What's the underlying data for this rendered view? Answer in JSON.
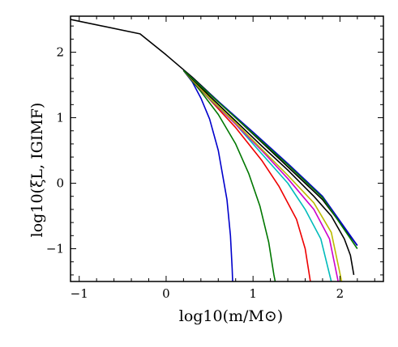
{
  "chart_data": {
    "type": "line",
    "title": "",
    "xlabel": "log10(m/M⊙)",
    "ylabel": "log10(ξL, IGIMF)",
    "xlim": [
      -1.1,
      2.5
    ],
    "ylim": [
      -1.5,
      2.55
    ],
    "xticks": [
      -1,
      0,
      1,
      2
    ],
    "yticks": [
      -1,
      0,
      1,
      2
    ],
    "grid": false,
    "legend": "none",
    "series": [
      {
        "color": "#0000cc",
        "x": [
          0.2,
          0.3,
          0.4,
          0.5,
          0.6,
          0.7,
          0.74,
          0.76,
          0.765
        ],
        "y": [
          1.72,
          1.55,
          1.3,
          0.98,
          0.5,
          -0.25,
          -0.8,
          -1.3,
          -1.5
        ]
      },
      {
        "color": "#007700",
        "x": [
          0.2,
          0.4,
          0.6,
          0.8,
          0.95,
          1.08,
          1.18,
          1.24,
          1.255
        ],
        "y": [
          1.72,
          1.4,
          1.05,
          0.6,
          0.15,
          -0.35,
          -0.9,
          -1.4,
          -1.5
        ]
      },
      {
        "color": "#ee0000",
        "x": [
          0.2,
          0.5,
          0.8,
          1.1,
          1.3,
          1.5,
          1.6,
          1.66
        ],
        "y": [
          1.72,
          1.28,
          0.85,
          0.35,
          -0.05,
          -0.55,
          -1.0,
          -1.5
        ]
      },
      {
        "color": "#00bbbb",
        "x": [
          0.2,
          0.5,
          0.8,
          1.1,
          1.4,
          1.6,
          1.78,
          1.9
        ],
        "y": [
          1.72,
          1.29,
          0.9,
          0.45,
          0.0,
          -0.4,
          -0.85,
          -1.5
        ]
      },
      {
        "color": "#cc00cc",
        "x": [
          0.2,
          0.5,
          0.8,
          1.1,
          1.4,
          1.7,
          1.88,
          1.98
        ],
        "y": [
          1.72,
          1.3,
          0.9,
          0.5,
          0.07,
          -0.4,
          -0.85,
          -1.5
        ]
      },
      {
        "color": "#bbbb00",
        "x": [
          0.2,
          0.5,
          0.8,
          1.1,
          1.4,
          1.7,
          1.9,
          2.02
        ],
        "y": [
          1.72,
          1.3,
          0.92,
          0.52,
          0.12,
          -0.3,
          -0.75,
          -1.5
        ]
      },
      {
        "color": "#000000",
        "x": [
          0.2,
          0.5,
          0.8,
          1.1,
          1.4,
          1.7,
          1.9,
          2.05,
          2.12,
          2.16
        ],
        "y": [
          1.72,
          1.33,
          0.95,
          0.57,
          0.2,
          -0.2,
          -0.5,
          -0.85,
          -1.1,
          -1.4
        ]
      },
      {
        "color": "#000000",
        "x": [
          -1.1,
          -0.3,
          0.0,
          0.3,
          0.6,
          1.0,
          1.4,
          1.8,
          2.2
        ],
        "y": [
          2.5,
          2.28,
          1.96,
          1.62,
          1.25,
          0.75,
          0.25,
          -0.25,
          -0.95
        ]
      },
      {
        "color": "#0000cc",
        "x": [
          0.2,
          0.6,
          1.0,
          1.4,
          1.8,
          2.2
        ],
        "y": [
          1.72,
          1.25,
          0.78,
          0.3,
          -0.2,
          -0.95
        ]
      },
      {
        "color": "#007700",
        "x": [
          0.2,
          0.6,
          1.0,
          1.4,
          1.8,
          2.2
        ],
        "y": [
          1.72,
          1.24,
          0.76,
          0.28,
          -0.22,
          -1.0
        ]
      }
    ]
  }
}
